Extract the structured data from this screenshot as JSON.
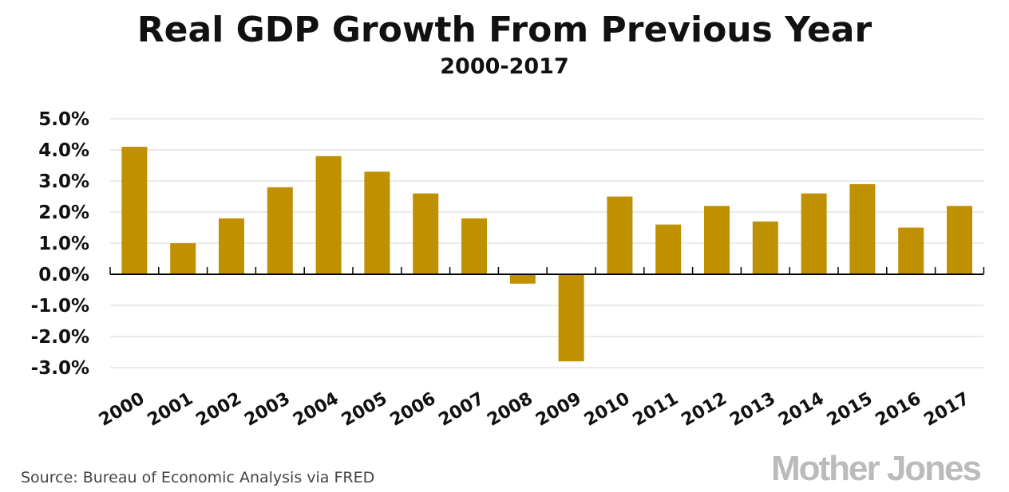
{
  "chart_data": {
    "type": "bar",
    "title": "Real GDP Growth From Previous Year",
    "subtitle": "2000-2017",
    "xlabel": "",
    "ylabel": "",
    "categories": [
      "2000",
      "2001",
      "2002",
      "2003",
      "2004",
      "2005",
      "2006",
      "2007",
      "2008",
      "2009",
      "2010",
      "2011",
      "2012",
      "2013",
      "2014",
      "2015",
      "2016",
      "2017"
    ],
    "values": [
      4.1,
      1.0,
      1.8,
      2.8,
      3.8,
      3.3,
      2.6,
      1.8,
      -0.3,
      -2.8,
      2.5,
      1.6,
      2.2,
      1.7,
      2.6,
      2.9,
      1.5,
      2.2
    ],
    "ylim": [
      -3,
      5
    ],
    "yticks": [
      5,
      4,
      3,
      2,
      1,
      0,
      -1,
      -2,
      -3
    ],
    "ytick_labels": [
      "5.0%",
      "4.0%",
      "3.0%",
      "2.0%",
      "1.0%",
      "0.0%",
      "-1.0%",
      "-2.0%",
      "-3.0%"
    ],
    "grid": true,
    "bar_color": "#bf9000",
    "source": "Source:  Bureau of Economic Analysis via FRED",
    "logo": "Mother Jones"
  }
}
